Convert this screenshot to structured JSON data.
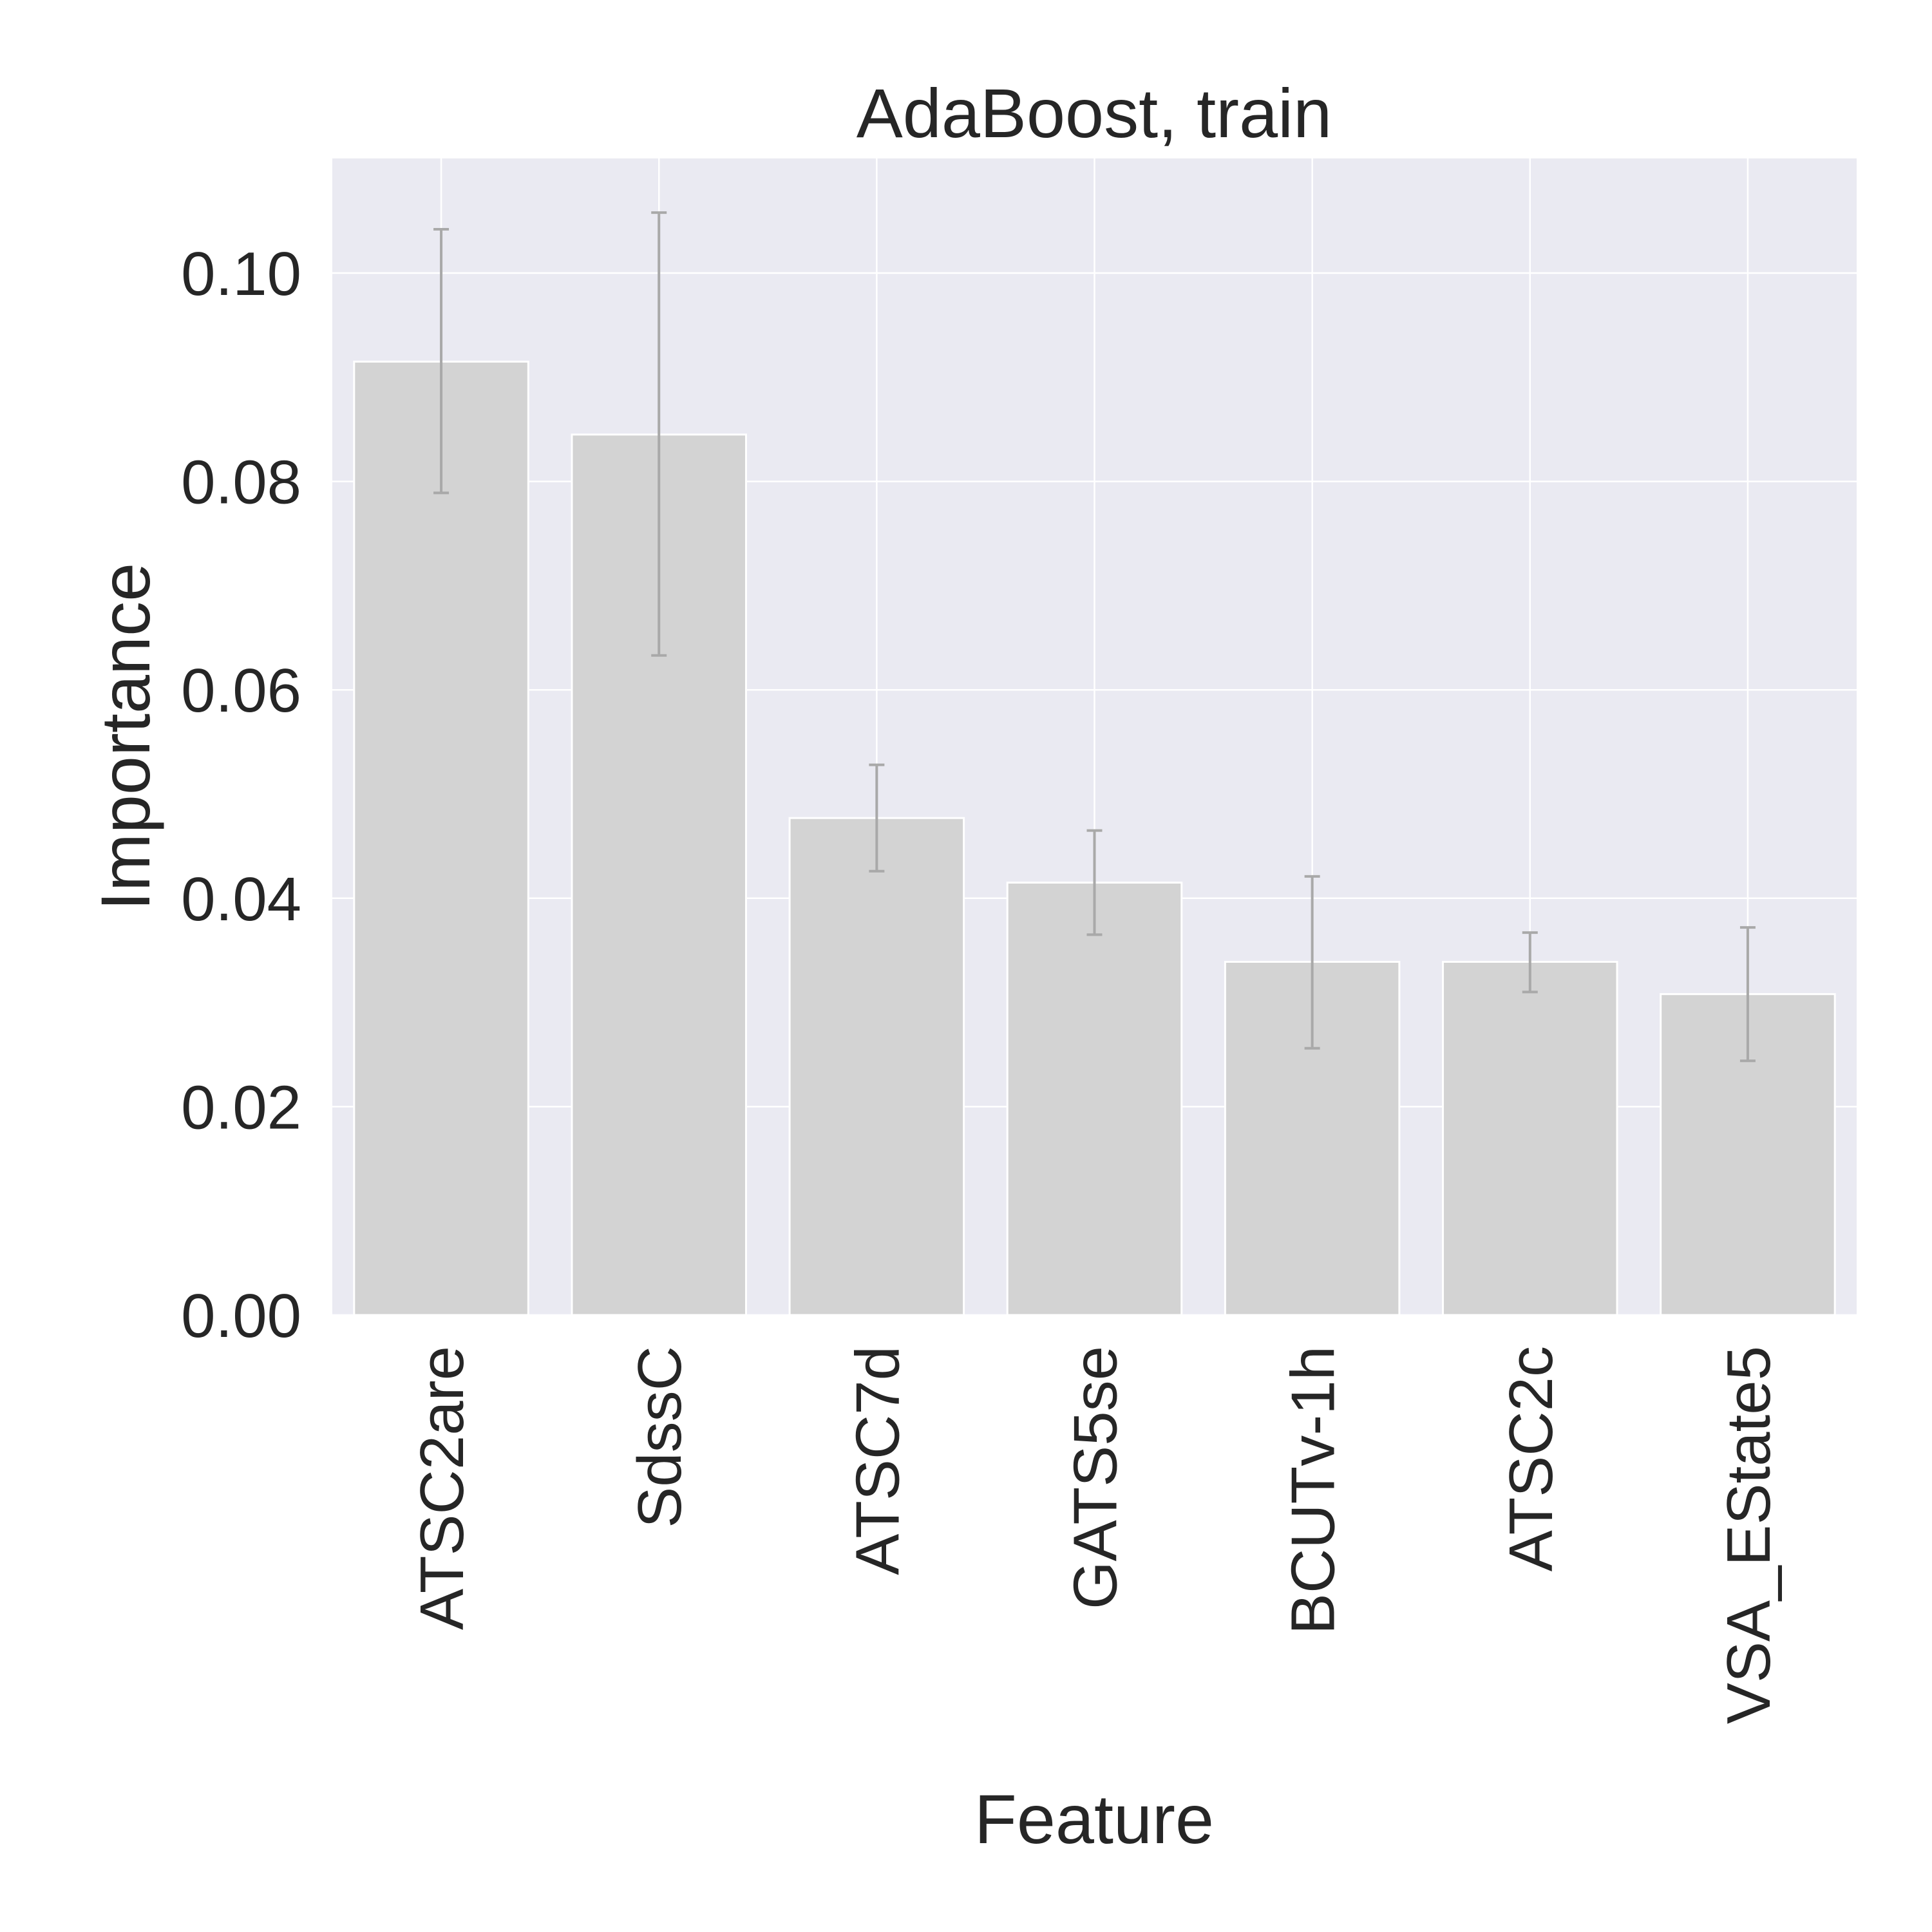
{
  "chart_data": {
    "type": "bar",
    "title": "AdaBoost, train",
    "xlabel": "Feature",
    "ylabel": "Importance",
    "categories": [
      "ATSC2are",
      "SdssC",
      "ATSC7d",
      "GATS5se",
      "BCUTv-1h",
      "ATSC2c",
      "VSA_EState5"
    ],
    "values": [
      0.0915,
      0.0845,
      0.0477,
      0.0415,
      0.0339,
      0.0339,
      0.0308
    ],
    "error_low": [
      0.0789,
      0.0633,
      0.0426,
      0.0365,
      0.0256,
      0.031,
      0.0244
    ],
    "error_high": [
      0.1042,
      0.1058,
      0.0528,
      0.0465,
      0.0421,
      0.0367,
      0.0372
    ],
    "ylim": [
      0,
      0.111
    ],
    "yticks": [
      0.0,
      0.02,
      0.04,
      0.06,
      0.08,
      0.1
    ],
    "ytick_labels": [
      "0.00",
      "0.02",
      "0.04",
      "0.06",
      "0.08",
      "0.10"
    ],
    "grid": true,
    "colors": {
      "plot_background": "#eaeaf2",
      "grid": "#ffffff",
      "bar_fill": "#d3d3d3",
      "bar_edge": "#ffffff",
      "error_bar": "#a9a9a9",
      "text": "#262626"
    }
  }
}
